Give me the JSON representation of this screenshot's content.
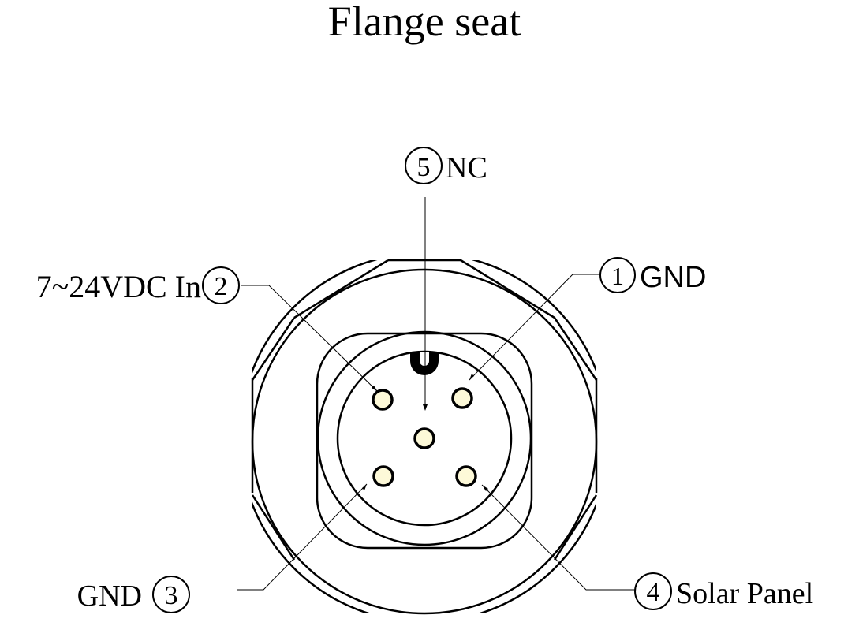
{
  "title": "Flange seat",
  "pins": [
    {
      "number": "①",
      "label": "GND"
    },
    {
      "number": "②",
      "label": "7~24VDC In"
    },
    {
      "number": "③",
      "label": "GND"
    },
    {
      "number": "④",
      "label": "Solar Panel"
    },
    {
      "number": "⑤",
      "label": "NC"
    }
  ],
  "colors": {
    "stroke": "#000000",
    "pin_fill": "#fdf9d8",
    "background": "#ffffff"
  }
}
